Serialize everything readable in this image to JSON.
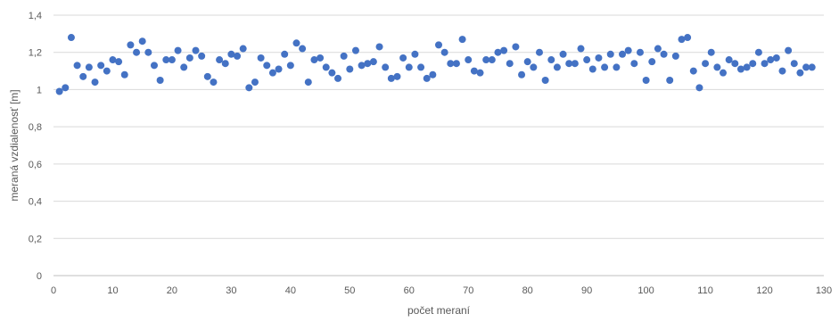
{
  "chart_data": {
    "type": "scatter",
    "title": "",
    "xlabel": "počet meraní",
    "ylabel": "meraná vzdialenosť [m]",
    "xlim": [
      0,
      130
    ],
    "ylim": [
      0,
      1.4
    ],
    "x_ticks": [
      0,
      10,
      20,
      30,
      40,
      50,
      60,
      70,
      80,
      90,
      100,
      110,
      120,
      130
    ],
    "y_ticks": [
      0,
      0.2,
      0.4,
      0.6,
      0.8,
      1.0,
      1.2,
      1.4
    ],
    "x_tick_labels": [
      "0",
      "10",
      "20",
      "30",
      "40",
      "50",
      "60",
      "70",
      "80",
      "90",
      "100",
      "110",
      "120",
      "130"
    ],
    "y_tick_labels": [
      "0",
      "0,2",
      "0,4",
      "0,6",
      "0,8",
      "1",
      "1,2",
      "1,4"
    ],
    "grid": "horizontal",
    "marker_color": "#4472c4",
    "series": [
      {
        "x": [
          1,
          2,
          3,
          4,
          5,
          6,
          7,
          8,
          9,
          10,
          11,
          12,
          13,
          14,
          15,
          16,
          17,
          18,
          19,
          20,
          21,
          22,
          23,
          24,
          25,
          26,
          27,
          28,
          29,
          30,
          31,
          32,
          33,
          34,
          35,
          36,
          37,
          38,
          39,
          40,
          41,
          42,
          43,
          44,
          45,
          46,
          47,
          48,
          49,
          50,
          51,
          52,
          53,
          54,
          55,
          56,
          57,
          58,
          59,
          60,
          61,
          62,
          63,
          64,
          65,
          66,
          67,
          68,
          69,
          70,
          71,
          72,
          73,
          74,
          75,
          76,
          77,
          78,
          79,
          80,
          81,
          82,
          83,
          84,
          85,
          86,
          87,
          88,
          89,
          90,
          91,
          92,
          93,
          94,
          95,
          96,
          97,
          98,
          99,
          100,
          101,
          102,
          103,
          104,
          105,
          106,
          107,
          108,
          109,
          110,
          111,
          112,
          113,
          114,
          115,
          116,
          117,
          118,
          119,
          120,
          121,
          122,
          123,
          124,
          125,
          126,
          127,
          128
        ],
        "y": [
          0.99,
          1.01,
          1.28,
          1.13,
          1.07,
          1.12,
          1.04,
          1.13,
          1.1,
          1.16,
          1.15,
          1.08,
          1.24,
          1.2,
          1.26,
          1.2,
          1.13,
          1.05,
          1.16,
          1.16,
          1.21,
          1.12,
          1.17,
          1.21,
          1.18,
          1.07,
          1.04,
          1.16,
          1.14,
          1.19,
          1.18,
          1.22,
          1.01,
          1.04,
          1.17,
          1.13,
          1.09,
          1.11,
          1.19,
          1.13,
          1.25,
          1.22,
          1.04,
          1.16,
          1.17,
          1.12,
          1.09,
          1.06,
          1.18,
          1.11,
          1.21,
          1.13,
          1.14,
          1.15,
          1.23,
          1.12,
          1.06,
          1.07,
          1.17,
          1.12,
          1.19,
          1.12,
          1.06,
          1.08,
          1.24,
          1.2,
          1.14,
          1.14,
          1.27,
          1.16,
          1.1,
          1.09,
          1.16,
          1.16,
          1.2,
          1.21,
          1.14,
          1.23,
          1.08,
          1.15,
          1.12,
          1.2,
          1.05,
          1.16,
          1.12,
          1.19,
          1.14,
          1.14,
          1.22,
          1.16,
          1.11,
          1.17,
          1.12,
          1.19,
          1.12,
          1.19,
          1.21,
          1.14,
          1.2,
          1.05,
          1.15,
          1.22,
          1.19,
          1.05,
          1.18,
          1.27,
          1.28,
          1.1,
          1.01,
          1.14,
          1.2,
          1.12,
          1.09,
          1.16,
          1.14,
          1.11,
          1.12,
          1.14,
          1.2,
          1.14,
          1.16,
          1.17,
          1.1,
          1.21,
          1.14,
          1.09,
          1.12,
          1.12
        ]
      }
    ]
  }
}
